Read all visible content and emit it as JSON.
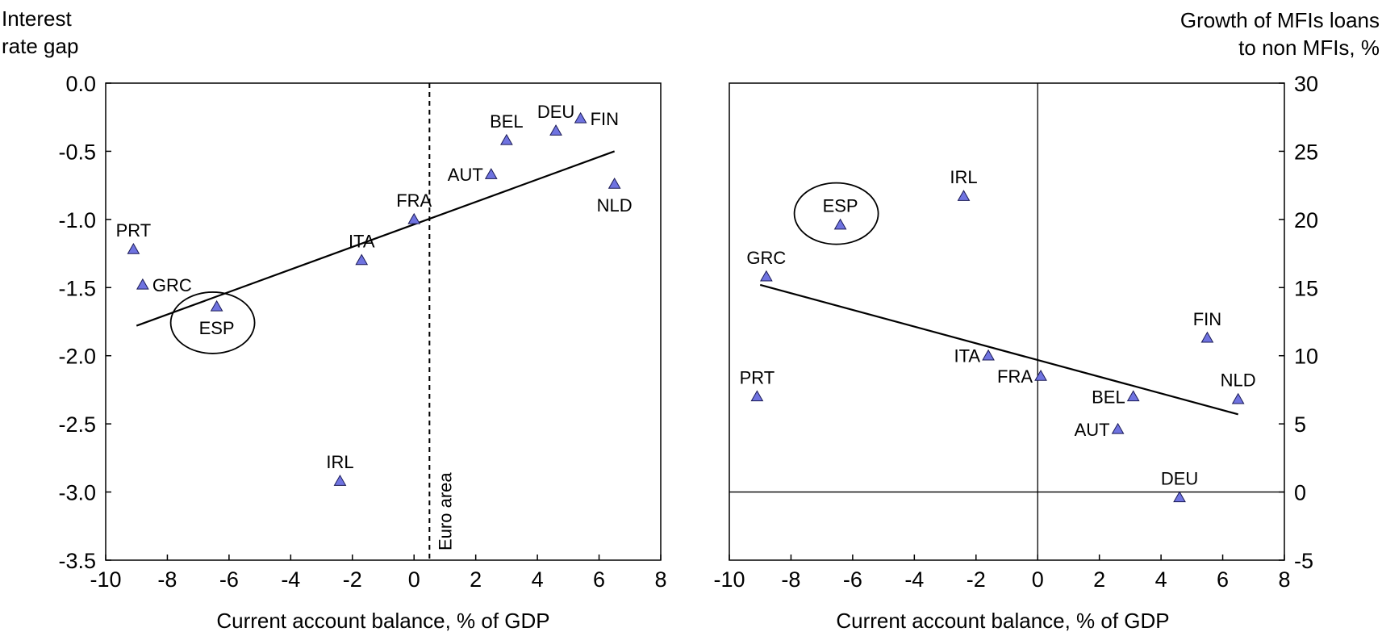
{
  "chart_data": [
    {
      "type": "scatter",
      "ylabel_lines": [
        "Interest",
        "rate gap"
      ],
      "xlabel": "Current account balance, % of GDP",
      "xlim": [
        -10,
        8
      ],
      "ylim": [
        -3.5,
        0
      ],
      "xticks": [
        -10,
        -8,
        -6,
        -4,
        -2,
        0,
        2,
        4,
        6,
        8
      ],
      "yticks": [
        0,
        -0.5,
        -1,
        -1.5,
        -2,
        -2.5,
        -3,
        -3.5
      ],
      "ytick_labels": [
        "0.0",
        "-0.5",
        "-1.0",
        "-1.5",
        "-2.0",
        "-2.5",
        "-3.0",
        "-3.5"
      ],
      "ytick_side": "left",
      "reference_line": {
        "x": 0.5,
        "label": "Euro area",
        "style": "dashed"
      },
      "trend_line": {
        "from": [
          -9,
          -1.78
        ],
        "to": [
          6.5,
          -0.5
        ]
      },
      "highlight": {
        "label": "ESP",
        "shape": "ellipse"
      },
      "marker_color": "#6f73e0",
      "points": [
        {
          "label": "PRT",
          "x": -9.1,
          "y": -1.22,
          "pos": "above"
        },
        {
          "label": "GRC",
          "x": -8.8,
          "y": -1.48,
          "pos": "right"
        },
        {
          "label": "ESP",
          "x": -6.4,
          "y": -1.64,
          "pos": "below"
        },
        {
          "label": "IRL",
          "x": -2.4,
          "y": -2.92,
          "pos": "above"
        },
        {
          "label": "ITA",
          "x": -1.7,
          "y": -1.3,
          "pos": "above"
        },
        {
          "label": "FRA",
          "x": 0.0,
          "y": -1.0,
          "pos": "above"
        },
        {
          "label": "AUT",
          "x": 2.5,
          "y": -0.67,
          "pos": "left"
        },
        {
          "label": "BEL",
          "x": 3.0,
          "y": -0.42,
          "pos": "above"
        },
        {
          "label": "DEU",
          "x": 4.6,
          "y": -0.35,
          "pos": "above"
        },
        {
          "label": "FIN",
          "x": 5.4,
          "y": -0.26,
          "pos": "right"
        },
        {
          "label": "NLD",
          "x": 6.5,
          "y": -0.74,
          "pos": "below"
        }
      ]
    },
    {
      "type": "scatter",
      "ylabel_lines": [
        "Growth of MFIs loans",
        "to non MFIs, %"
      ],
      "xlabel": "Current account balance, % of GDP",
      "xlim": [
        -10,
        8
      ],
      "ylim": [
        -5,
        30
      ],
      "xticks": [
        -10,
        -8,
        -6,
        -4,
        -2,
        0,
        2,
        4,
        6,
        8
      ],
      "yticks": [
        30,
        25,
        20,
        15,
        10,
        5,
        0,
        -5
      ],
      "ytick_labels": [
        "30",
        "25",
        "20",
        "15",
        "10",
        "5",
        "0",
        "-5"
      ],
      "ytick_side": "right",
      "zero_lines": true,
      "trend_line": {
        "from": [
          -9,
          15.2
        ],
        "to": [
          6.5,
          5.7
        ]
      },
      "highlight": {
        "label": "ESP",
        "shape": "ellipse"
      },
      "marker_color": "#6f73e0",
      "points": [
        {
          "label": "PRT",
          "x": -9.1,
          "y": 7.0,
          "pos": "above"
        },
        {
          "label": "GRC",
          "x": -8.8,
          "y": 15.8,
          "pos": "above"
        },
        {
          "label": "ESP",
          "x": -6.4,
          "y": 19.6,
          "pos": "above"
        },
        {
          "label": "IRL",
          "x": -2.4,
          "y": 21.7,
          "pos": "above"
        },
        {
          "label": "ITA",
          "x": -1.6,
          "y": 10.0,
          "pos": "left"
        },
        {
          "label": "FRA",
          "x": 0.1,
          "y": 8.5,
          "pos": "left"
        },
        {
          "label": "BEL",
          "x": 3.1,
          "y": 7.0,
          "pos": "left"
        },
        {
          "label": "AUT",
          "x": 2.6,
          "y": 4.6,
          "pos": "left"
        },
        {
          "label": "DEU",
          "x": 4.6,
          "y": -0.4,
          "pos": "above"
        },
        {
          "label": "FIN",
          "x": 5.5,
          "y": 11.3,
          "pos": "above"
        },
        {
          "label": "NLD",
          "x": 6.5,
          "y": 6.8,
          "pos": "above"
        }
      ]
    }
  ]
}
